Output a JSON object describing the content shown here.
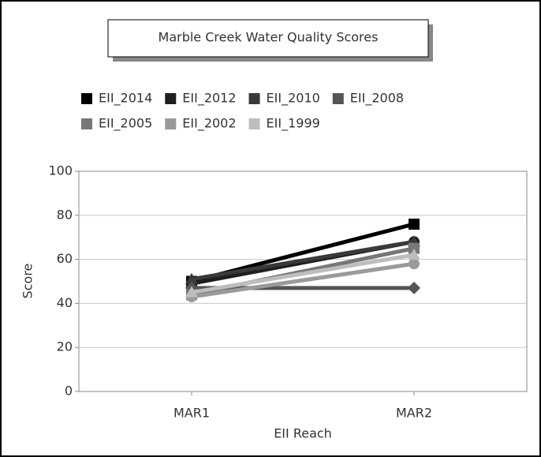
{
  "chart_data": {
    "type": "line",
    "title": "Marble Creek Water Quality Scores",
    "categories": [
      "MAR1",
      "MAR2"
    ],
    "series": [
      {
        "name": "EII_2014",
        "color": "#000000",
        "values": [
          50,
          76
        ]
      },
      {
        "name": "EII_2012",
        "color": "#1e1e1e",
        "values": [
          49,
          68
        ]
      },
      {
        "name": "EII_2010",
        "color": "#3a3a3a",
        "values": [
          51,
          68
        ]
      },
      {
        "name": "EII_2008",
        "color": "#555555",
        "values": [
          47,
          47
        ]
      },
      {
        "name": "EII_2005",
        "color": "#777777",
        "values": [
          44,
          65
        ]
      },
      {
        "name": "EII_2002",
        "color": "#9a9a9a",
        "values": [
          43,
          58
        ]
      },
      {
        "name": "EII_1999",
        "color": "#bdbdbd",
        "values": [
          45,
          62
        ]
      }
    ],
    "xlabel": "EII Reach",
    "ylabel": "Score",
    "ylim": [
      0,
      100
    ],
    "yticks": [
      0,
      20,
      40,
      60,
      80,
      100
    ],
    "grid": true
  }
}
